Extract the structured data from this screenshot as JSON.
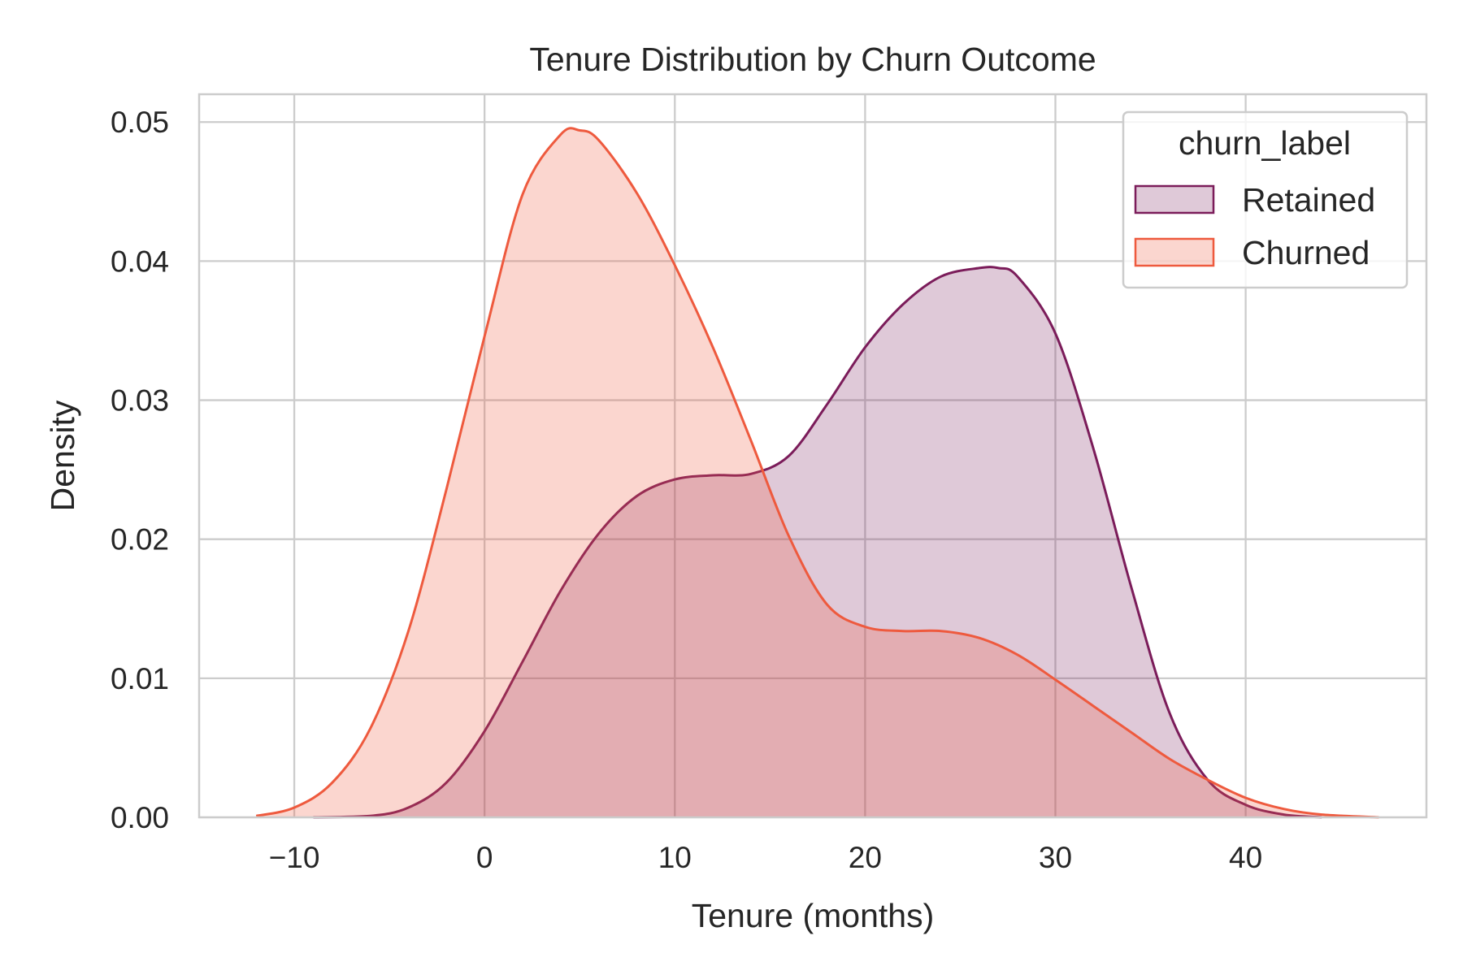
{
  "chart_data": {
    "type": "area",
    "title": "Tenure Distribution by Churn Outcome",
    "xlabel": "Tenure (months)",
    "ylabel": "Density",
    "xlim": [
      -15,
      49.5
    ],
    "ylim": [
      0,
      0.052
    ],
    "xticks": [
      -10,
      0,
      10,
      20,
      30,
      40
    ],
    "xtick_labels": [
      "−10",
      "0",
      "10",
      "20",
      "30",
      "40"
    ],
    "yticks": [
      0,
      0.01,
      0.02,
      0.03,
      0.04,
      0.05
    ],
    "ytick_labels": [
      "0.00",
      "0.01",
      "0.02",
      "0.03",
      "0.04",
      "0.05"
    ],
    "grid": true,
    "legend": {
      "title": "churn_label",
      "placement": "top-right"
    },
    "series": [
      {
        "name": "Retained",
        "line_color": "#7b1c5a",
        "fill_color": "#7b1c5a",
        "fill_opacity": 0.24,
        "x": [
          -9,
          -6,
          -4,
          -2,
          0,
          2,
          4,
          6,
          8,
          10,
          12,
          14,
          16,
          18,
          20,
          22,
          24,
          26,
          27,
          28,
          30,
          32,
          34,
          36,
          38,
          40,
          42,
          44
        ],
        "y": [
          0.0,
          0.0001,
          0.0007,
          0.0025,
          0.0062,
          0.0112,
          0.0163,
          0.0204,
          0.0231,
          0.0243,
          0.0246,
          0.0247,
          0.026,
          0.0297,
          0.0338,
          0.0369,
          0.0389,
          0.0395,
          0.0395,
          0.0389,
          0.0348,
          0.0265,
          0.0165,
          0.0075,
          0.0027,
          0.0009,
          0.0002,
          0.0
        ]
      },
      {
        "name": "Churned",
        "line_color": "#ee5a3e",
        "fill_color": "#ee5a3e",
        "fill_opacity": 0.25,
        "x": [
          -12,
          -10,
          -8,
          -6,
          -4,
          -2,
          0,
          2,
          4,
          5,
          6,
          8,
          10,
          12,
          14,
          16,
          18,
          20,
          22,
          24,
          26,
          28,
          30,
          32,
          34,
          36,
          38,
          40,
          42,
          44,
          47
        ],
        "y": [
          0.0001,
          0.0007,
          0.0025,
          0.0064,
          0.0134,
          0.0236,
          0.0346,
          0.0448,
          0.0491,
          0.0494,
          0.0487,
          0.0449,
          0.0397,
          0.0338,
          0.0271,
          0.0202,
          0.0153,
          0.0137,
          0.0134,
          0.0134,
          0.0129,
          0.0117,
          0.0099,
          0.008,
          0.0061,
          0.0042,
          0.0027,
          0.0014,
          0.0006,
          0.0002,
          0.0
        ]
      }
    ]
  }
}
